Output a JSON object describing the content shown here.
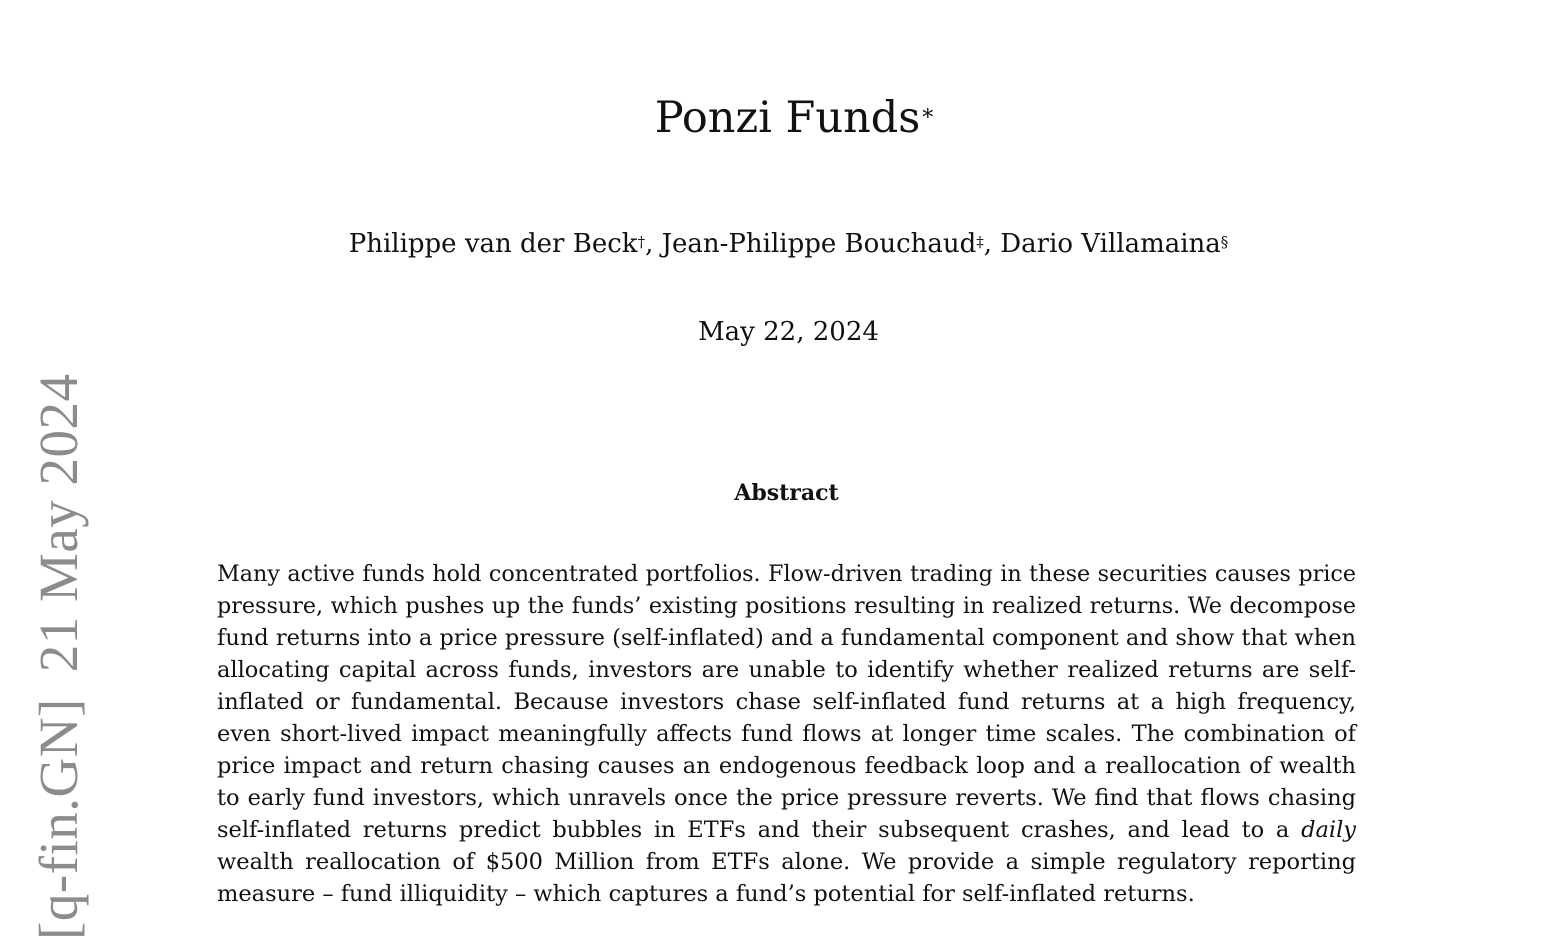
{
  "paper": {
    "title": "Ponzi Funds",
    "title_mark": "∗",
    "authors": [
      {
        "name": "Philippe van der Beck",
        "mark": "†",
        "sep": ", "
      },
      {
        "name": "Jean-Philippe Bouchaud",
        "mark": "‡",
        "sep": ", "
      },
      {
        "name": "Dario Villamaina",
        "mark": "§",
        "sep": ""
      }
    ],
    "date": "May 22, 2024",
    "abstract_heading": "Abstract",
    "abstract_lines": [
      "Many active funds hold concentrated portfolios. Flow-driven trading in these securities causes price",
      "pressure, which pushes up the funds’ existing positions resulting in realized returns. We decompose",
      "fund returns into a price pressure (self-inflated) and a fundamental component and show that when",
      "allocating capital across funds, investors are unable to identify whether realized returns are self-",
      "inflated or fundamental. Because investors chase self-inflated fund returns at a high frequency,",
      "even short-lived impact meaningfully affects fund flows at longer time scales. The combination of",
      "price impact and return chasing causes an endogenous feedback loop and a reallocation of wealth",
      "to early fund investors, which unravels once the price pressure reverts. We find that flows chasing"
    ],
    "abstract_line_9_pre": "self-inflated returns predict bubbles in ETFs and their subsequent crashes, and lead to a ",
    "abstract_line_9_em": "daily",
    "abstract_line_10": "wealth reallocation of $500 Million from ETFs alone. We provide a simple regulatory reporting",
    "abstract_line_11": "measure – fund illiquidity – which captures a fund’s potential for self-inflated returns."
  },
  "arxiv": {
    "category": "[q-fin.GN]",
    "date": "21 May 2024"
  }
}
